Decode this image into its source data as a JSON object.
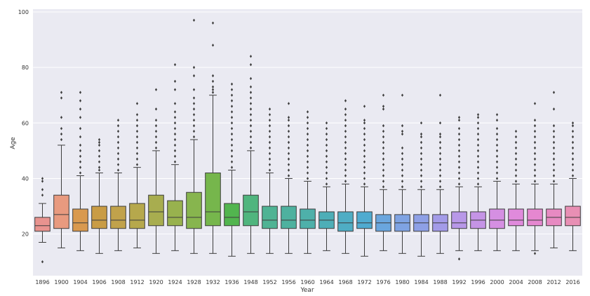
{
  "chart_data": {
    "type": "boxplot",
    "xlabel": "Year",
    "ylabel": "Age",
    "ylim": [
      5,
      101
    ],
    "yticks": [
      20,
      40,
      60,
      80,
      100
    ],
    "grid": true,
    "categories": [
      "1896",
      "1900",
      "1904",
      "1906",
      "1908",
      "1912",
      "1920",
      "1924",
      "1928",
      "1932",
      "1936",
      "1948",
      "1952",
      "1956",
      "1960",
      "1964",
      "1968",
      "1972",
      "1976",
      "1980",
      "1984",
      "1988",
      "1992",
      "1996",
      "2000",
      "2004",
      "2008",
      "2012",
      "2016"
    ],
    "colors": [
      "#e8938f",
      "#e89a7f",
      "#d9994f",
      "#c99c45",
      "#c1a24b",
      "#b6a84c",
      "#a8ad4f",
      "#98b24e",
      "#87b54e",
      "#76b64c",
      "#52b54f",
      "#50b57e",
      "#4fb394",
      "#4eb19f",
      "#4eb0aa",
      "#4eaeb7",
      "#4fadc4",
      "#4fabd0",
      "#6aa6de",
      "#7fa3e3",
      "#8ea0e6",
      "#a39be8",
      "#b898e8",
      "#c594e6",
      "#d58fe2",
      "#e08adc",
      "#e587d0",
      "#e78ac2",
      "#e88fb4"
    ],
    "stats": [
      {
        "whislo": 17,
        "q1": 21,
        "med": 23,
        "q3": 26,
        "whishi": 31,
        "fliers": [
          10,
          34,
          36,
          39,
          40
        ]
      },
      {
        "whislo": 15,
        "q1": 22,
        "med": 27,
        "q3": 34,
        "whishi": 52,
        "fliers": [
          54,
          56,
          58,
          62,
          69,
          71
        ]
      },
      {
        "whislo": 14,
        "q1": 21,
        "med": 24,
        "q3": 29,
        "whishi": 41,
        "fliers": [
          42,
          44,
          46,
          48,
          50,
          52,
          55,
          58,
          62,
          65,
          68,
          71
        ]
      },
      {
        "whislo": 13,
        "q1": 22,
        "med": 25,
        "q3": 30,
        "whishi": 42,
        "fliers": [
          43,
          44,
          46,
          48,
          50,
          52,
          53,
          54
        ]
      },
      {
        "whislo": 14,
        "q1": 22,
        "med": 25,
        "q3": 30,
        "whishi": 42,
        "fliers": [
          43,
          45,
          47,
          49,
          51,
          53,
          55,
          57,
          59,
          61
        ]
      },
      {
        "whislo": 15,
        "q1": 22,
        "med": 25,
        "q3": 31,
        "whishi": 44,
        "fliers": [
          45,
          47,
          49,
          51,
          53,
          55,
          57,
          59,
          61,
          63,
          67
        ]
      },
      {
        "whislo": 13,
        "q1": 23,
        "med": 28,
        "q3": 34,
        "whishi": 50,
        "fliers": [
          51,
          53,
          55,
          57,
          59,
          61,
          65,
          72
        ]
      },
      {
        "whislo": 14,
        "q1": 23,
        "med": 26,
        "q3": 32,
        "whishi": 45,
        "fliers": [
          46,
          48,
          50,
          52,
          54,
          56,
          58,
          60,
          62,
          64,
          67,
          72,
          75,
          81
        ]
      },
      {
        "whislo": 13,
        "q1": 22,
        "med": 26,
        "q3": 35,
        "whishi": 54,
        "fliers": [
          55,
          57,
          59,
          61,
          63,
          65,
          67,
          69,
          72,
          77,
          80,
          97
        ]
      },
      {
        "whislo": 13,
        "q1": 23,
        "med": 28,
        "q3": 42,
        "whishi": 70,
        "fliers": [
          71,
          72,
          73,
          75,
          77,
          88,
          96
        ]
      },
      {
        "whislo": 12,
        "q1": 23,
        "med": 26,
        "q3": 31,
        "whishi": 43,
        "fliers": [
          44,
          46,
          48,
          50,
          52,
          54,
          56,
          58,
          60,
          62,
          64,
          66,
          68,
          70,
          72,
          74
        ]
      },
      {
        "whislo": 13,
        "q1": 23,
        "med": 28,
        "q3": 34,
        "whishi": 50,
        "fliers": [
          51,
          53,
          55,
          57,
          59,
          61,
          63,
          65,
          67,
          69,
          71,
          73,
          76,
          81,
          84
        ]
      },
      {
        "whislo": 13,
        "q1": 22,
        "med": 25,
        "q3": 30,
        "whishi": 42,
        "fliers": [
          43,
          45,
          47,
          49,
          51,
          53,
          55,
          57,
          59,
          61,
          63,
          65
        ]
      },
      {
        "whislo": 13,
        "q1": 22,
        "med": 25,
        "q3": 30,
        "whishi": 40,
        "fliers": [
          41,
          43,
          45,
          47,
          49,
          51,
          53,
          55,
          57,
          59,
          61,
          62,
          67
        ]
      },
      {
        "whislo": 13,
        "q1": 22,
        "med": 25,
        "q3": 29,
        "whishi": 39,
        "fliers": [
          40,
          42,
          44,
          46,
          48,
          50,
          52,
          54,
          56,
          58,
          60,
          62,
          64
        ]
      },
      {
        "whislo": 14,
        "q1": 22,
        "med": 25,
        "q3": 28,
        "whishi": 37,
        "fliers": [
          38,
          40,
          42,
          44,
          46,
          48,
          50,
          52,
          54,
          56,
          58,
          60
        ]
      },
      {
        "whislo": 13,
        "q1": 21,
        "med": 24,
        "q3": 28,
        "whishi": 38,
        "fliers": [
          39,
          41,
          43,
          45,
          47,
          49,
          51,
          53,
          55,
          57,
          59,
          61,
          63,
          65,
          68
        ]
      },
      {
        "whislo": 12,
        "q1": 22,
        "med": 24,
        "q3": 28,
        "whishi": 37,
        "fliers": [
          38,
          40,
          42,
          44,
          46,
          48,
          50,
          52,
          54,
          56,
          58,
          60,
          61,
          66
        ]
      },
      {
        "whislo": 14,
        "q1": 21,
        "med": 24,
        "q3": 27,
        "whishi": 36,
        "fliers": [
          37,
          39,
          41,
          43,
          45,
          47,
          49,
          51,
          53,
          55,
          57,
          59,
          65,
          66,
          70
        ]
      },
      {
        "whislo": 13,
        "q1": 21,
        "med": 24,
        "q3": 27,
        "whishi": 36,
        "fliers": [
          37,
          39,
          41,
          43,
          45,
          47,
          49,
          51,
          56,
          57,
          59,
          70
        ]
      },
      {
        "whislo": 12,
        "q1": 21,
        "med": 24,
        "q3": 27,
        "whishi": 36,
        "fliers": [
          37,
          39,
          41,
          43,
          45,
          47,
          49,
          51,
          53,
          55,
          56,
          60
        ]
      },
      {
        "whislo": 13,
        "q1": 21,
        "med": 24,
        "q3": 27,
        "whishi": 36,
        "fliers": [
          37,
          39,
          41,
          43,
          45,
          47,
          49,
          51,
          53,
          55,
          56,
          60,
          70
        ]
      },
      {
        "whislo": 14,
        "q1": 22,
        "med": 24,
        "q3": 28,
        "whishi": 37,
        "fliers": [
          11,
          38,
          40,
          42,
          44,
          46,
          48,
          50,
          52,
          54,
          56,
          58,
          61,
          62
        ]
      },
      {
        "whislo": 14,
        "q1": 22,
        "med": 25,
        "q3": 28,
        "whishi": 37,
        "fliers": [
          38,
          40,
          42,
          44,
          46,
          48,
          50,
          52,
          54,
          56,
          58,
          60,
          62,
          63
        ]
      },
      {
        "whislo": 14,
        "q1": 22,
        "med": 25,
        "q3": 29,
        "whishi": 39,
        "fliers": [
          40,
          42,
          44,
          46,
          48,
          50,
          52,
          54,
          56,
          58,
          61,
          63
        ]
      },
      {
        "whislo": 14,
        "q1": 23,
        "med": 25,
        "q3": 29,
        "whishi": 38,
        "fliers": [
          39,
          41,
          43,
          45,
          47,
          49,
          51,
          53,
          55,
          57
        ]
      },
      {
        "whislo": 14,
        "q1": 23,
        "med": 25,
        "q3": 29,
        "whishi": 38,
        "fliers": [
          13,
          39,
          41,
          43,
          45,
          47,
          49,
          51,
          53,
          55,
          57,
          59,
          61,
          67
        ]
      },
      {
        "whislo": 15,
        "q1": 23,
        "med": 26,
        "q3": 29,
        "whishi": 38,
        "fliers": [
          39,
          41,
          43,
          45,
          47,
          49,
          51,
          53,
          55,
          57,
          59,
          65,
          71
        ]
      },
      {
        "whislo": 14,
        "q1": 23,
        "med": 26,
        "q3": 30,
        "whishi": 40,
        "fliers": [
          41,
          43,
          45,
          47,
          49,
          51,
          53,
          55,
          57,
          59,
          60
        ]
      }
    ]
  }
}
